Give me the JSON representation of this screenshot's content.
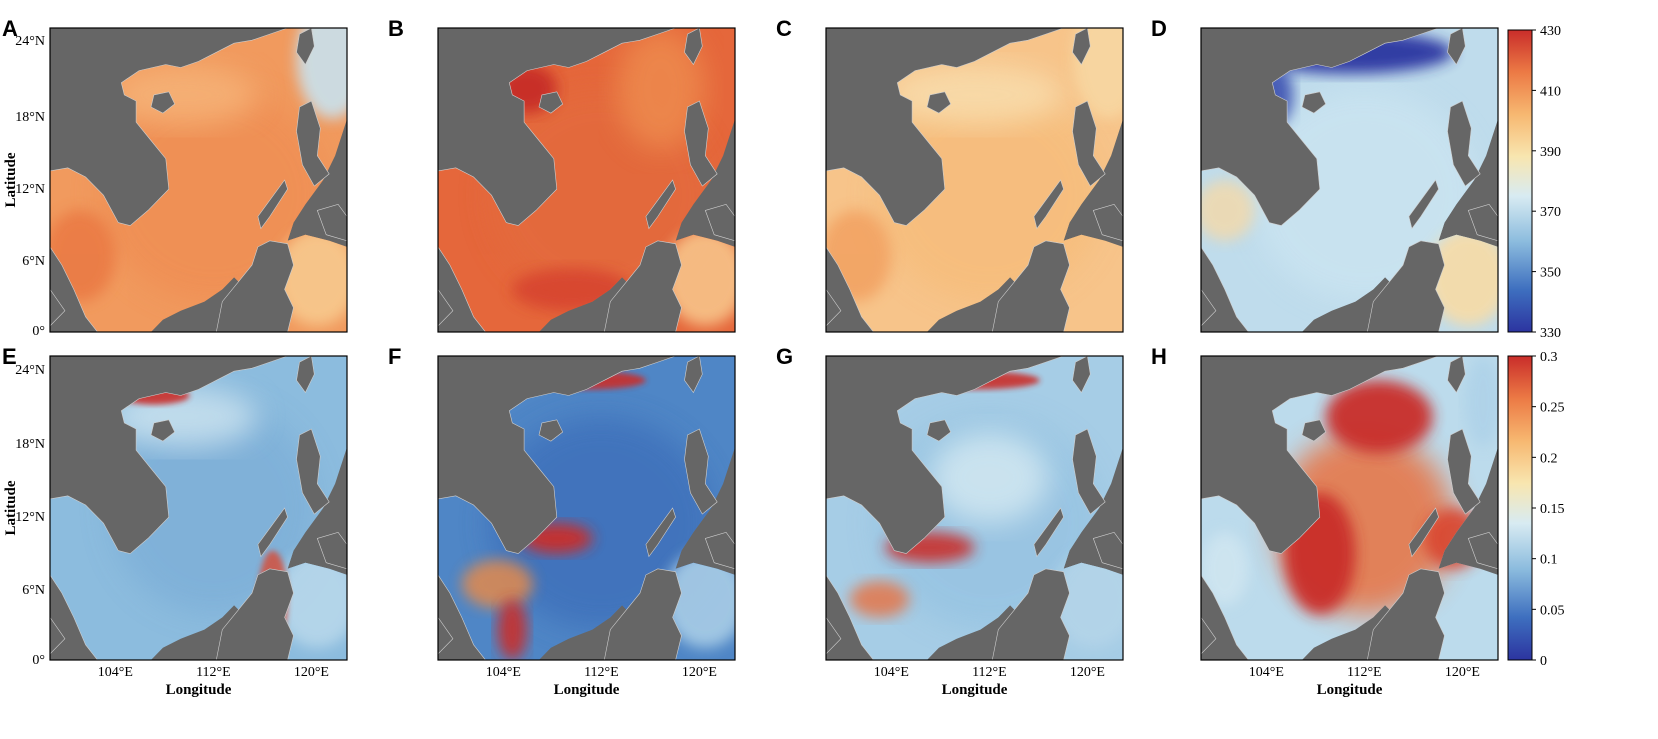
{
  "panels": [
    {
      "label": "A",
      "row": 0,
      "col": 0,
      "variable": "mean",
      "palette": "orange-uniform"
    },
    {
      "label": "B",
      "row": 0,
      "col": 1,
      "variable": "mean",
      "palette": "red-high"
    },
    {
      "label": "C",
      "row": 0,
      "col": 2,
      "variable": "mean",
      "palette": "light-orange"
    },
    {
      "label": "D",
      "row": 0,
      "col": 3,
      "variable": "mean",
      "palette": "blue-low"
    },
    {
      "label": "E",
      "row": 1,
      "col": 0,
      "variable": "spread",
      "palette": "blue-mid"
    },
    {
      "label": "F",
      "row": 1,
      "col": 1,
      "variable": "spread",
      "palette": "deep-blue-plume"
    },
    {
      "label": "G",
      "row": 1,
      "col": 2,
      "variable": "spread",
      "palette": "light-blue-plume"
    },
    {
      "label": "H",
      "row": 1,
      "col": 3,
      "variable": "spread",
      "palette": "red-core"
    }
  ],
  "axes": {
    "lat_ticks": [
      "24°N",
      "18°N",
      "12°N",
      "6°N",
      "0°"
    ],
    "lon_ticks": [
      "104°E",
      "112°E",
      "120°E"
    ],
    "ylabel": "Latitude",
    "xlabel": "Longitude"
  },
  "colorbars": [
    {
      "ticks": [
        "430",
        "410",
        "390",
        "370",
        "350",
        "330"
      ],
      "range": [
        330,
        430
      ]
    },
    {
      "ticks": [
        "0.3",
        "0.25",
        "0.2",
        "0.15",
        "0.1",
        "0.05",
        "0"
      ],
      "range": [
        0,
        0.3
      ]
    }
  ],
  "colors": {
    "land": "#666666",
    "coast": "#cfcfcf",
    "scale": [
      "#2c34a0",
      "#3e6fbf",
      "#8cbcde",
      "#d8ebf2",
      "#f8e6b0",
      "#f7b871",
      "#ec7a45",
      "#c92d2a"
    ]
  }
}
